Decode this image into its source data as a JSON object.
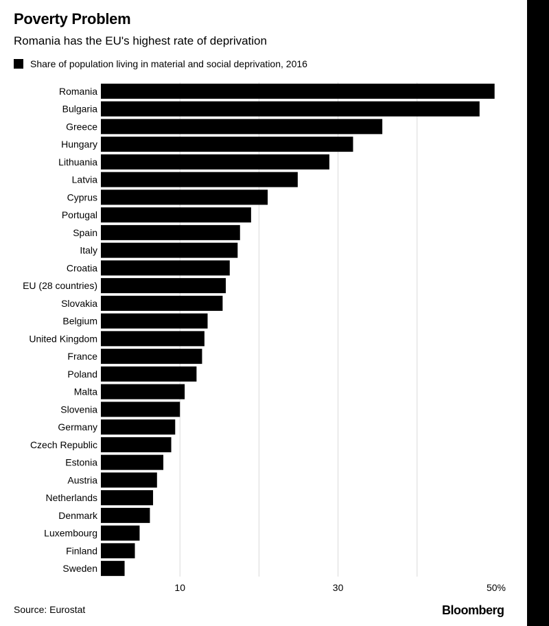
{
  "title": "Poverty Problem",
  "subtitle": "Romania has the EU's highest rate of deprivation",
  "legend_label": "Share of population living in material and social deprivation, 2016",
  "source": "Source: Eurostat",
  "brand": "Bloomberg",
  "colors": {
    "bar": "#000000",
    "grid": "#d9d9d9",
    "side_bar": "#000000"
  },
  "chart_data": {
    "type": "bar",
    "orientation": "horizontal",
    "title": "Poverty Problem",
    "series": [
      {
        "name": "Share of population living in material and social deprivation, 2016"
      }
    ],
    "categories": [
      "Romania",
      "Bulgaria",
      "Greece",
      "Hungary",
      "Lithuania",
      "Latvia",
      "Cyprus",
      "Portugal",
      "Spain",
      "Italy",
      "Croatia",
      "EU (28 countries)",
      "Slovakia",
      "Belgium",
      "United Kingdom",
      "France",
      "Poland",
      "Malta",
      "Slovenia",
      "Germany",
      "Czech Republic",
      "Estonia",
      "Austria",
      "Netherlands",
      "Denmark",
      "Luxembourg",
      "Finland",
      "Sweden"
    ],
    "values": [
      49.8,
      47.9,
      35.6,
      31.9,
      28.9,
      24.9,
      21.1,
      19.0,
      17.6,
      17.3,
      16.3,
      15.8,
      15.4,
      13.5,
      13.1,
      12.8,
      12.1,
      10.6,
      10.0,
      9.4,
      8.9,
      7.9,
      7.1,
      6.6,
      6.2,
      4.9,
      4.3,
      3.0
    ],
    "xlim": [
      0,
      50
    ],
    "x_gridlines": [
      10,
      20,
      30,
      40
    ],
    "x_ticks": [
      {
        "value": 10,
        "label": "10"
      },
      {
        "value": 30,
        "label": "30"
      },
      {
        "value": 50,
        "label": "50%"
      }
    ],
    "xlabel": "",
    "ylabel": ""
  }
}
